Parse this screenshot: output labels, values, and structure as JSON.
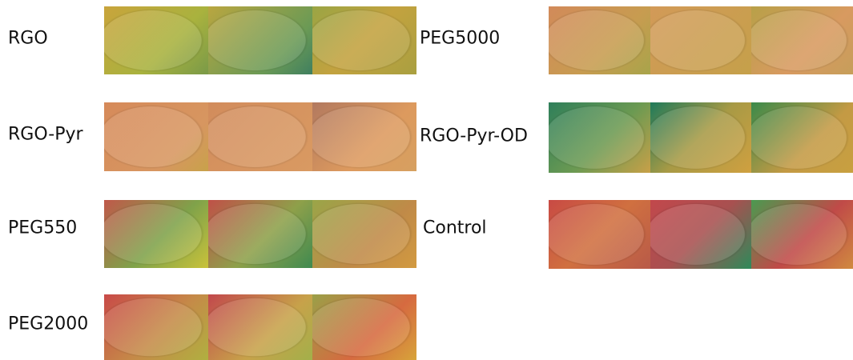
{
  "panels": [
    {
      "label": "RGO"
    },
    {
      "label": "RGO-Pyr"
    },
    {
      "label": "PEG550"
    },
    {
      "label": "PEG2000"
    },
    {
      "label": "PEG5000"
    },
    {
      "label": "RGO-Pyr-OD"
    },
    {
      "label": "Control"
    }
  ]
}
